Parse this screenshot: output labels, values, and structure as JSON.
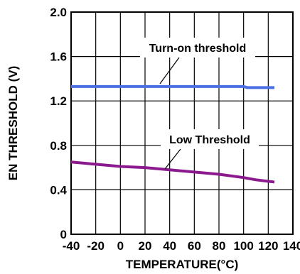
{
  "chart_data": {
    "type": "line",
    "xlabel": "TEMPERATURE(°C)",
    "ylabel": "EN THRESHOLD (V)",
    "xlim": [
      -40,
      140
    ],
    "ylim": [
      0,
      2.0
    ],
    "x_ticks": [
      -40,
      -20,
      0,
      20,
      40,
      60,
      80,
      100,
      120,
      140
    ],
    "x_tick_labels": [
      "-40",
      "-20",
      "0",
      "20",
      "40",
      "60",
      "80",
      "100",
      "120",
      "140"
    ],
    "y_ticks": [
      0,
      0.4,
      0.8,
      1.2,
      1.6,
      2.0
    ],
    "y_tick_labels": [
      "0",
      "0.4",
      "0.8",
      "1.2",
      "1.6",
      "2.0"
    ],
    "grid": true,
    "series": [
      {
        "name": "Turn-on threshold",
        "color": "#4a6fe3",
        "x": [
          -40,
          -20,
          0,
          20,
          40,
          60,
          80,
          100,
          103,
          125
        ],
        "y": [
          1.33,
          1.33,
          1.33,
          1.33,
          1.33,
          1.33,
          1.33,
          1.33,
          1.32,
          1.32
        ]
      },
      {
        "name": "Low Threshold",
        "color": "#8b1a8f",
        "x": [
          -40,
          -20,
          0,
          20,
          40,
          60,
          80,
          100,
          110,
          125
        ],
        "y": [
          0.65,
          0.63,
          0.61,
          0.6,
          0.58,
          0.56,
          0.54,
          0.51,
          0.49,
          0.47
        ]
      }
    ],
    "annotations": [
      {
        "text": "Turn-on threshold",
        "series": "Turn-on threshold"
      },
      {
        "text": "Low Threshold",
        "series": "Low Threshold"
      }
    ]
  }
}
